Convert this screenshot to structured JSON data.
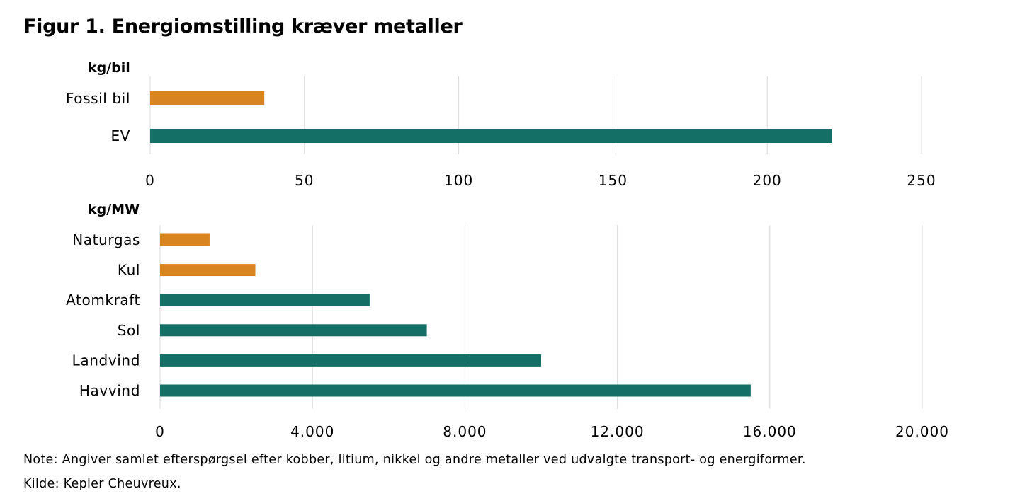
{
  "title": "Figur 1. Energiomstilling kræver metaller",
  "colors": {
    "fossil": "#D88420",
    "green": "#147066",
    "grid": "#D9D9D9"
  },
  "chart_data": [
    {
      "type": "bar",
      "orientation": "horizontal",
      "unit_label": "kg/bil",
      "categories": [
        "Fossil bil",
        "EV"
      ],
      "values": [
        37,
        221
      ],
      "bar_colors": [
        "fossil",
        "green"
      ],
      "xlim": [
        0,
        250
      ],
      "ticks": [
        0,
        50,
        100,
        150,
        200,
        250
      ],
      "tick_labels": [
        "0",
        "50",
        "100",
        "150",
        "200",
        "250"
      ],
      "grid": true,
      "legend": "none"
    },
    {
      "type": "bar",
      "orientation": "horizontal",
      "unit_label": "kg/MW",
      "categories": [
        "Naturgas",
        "Kul",
        "Atomkraft",
        "Sol",
        "Landvind",
        "Havvind"
      ],
      "values": [
        1300,
        2500,
        5500,
        7000,
        10000,
        15500
      ],
      "bar_colors": [
        "fossil",
        "fossil",
        "green",
        "green",
        "green",
        "green"
      ],
      "xlim": [
        0,
        20000
      ],
      "ticks": [
        0,
        4000,
        8000,
        12000,
        16000,
        20000
      ],
      "tick_labels": [
        "0",
        "4.000",
        "8.000",
        "12.000",
        "16.000",
        "20.000"
      ],
      "grid": true,
      "legend": "none"
    }
  ],
  "note": "Note: Angiver samlet efterspørgsel efter kobber, litium, nikkel og andre metaller ved udvalgte transport- og energiformer.",
  "source": "Kilde: Kepler Cheuvreux."
}
